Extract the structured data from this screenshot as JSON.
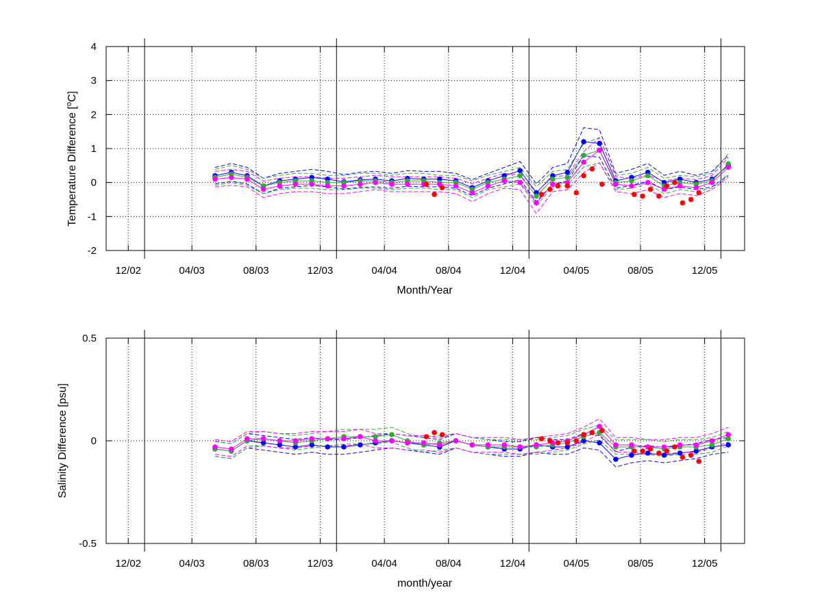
{
  "chart_data": [
    {
      "type": "scatter",
      "title": "",
      "xlabel": "Month/Year",
      "ylabel": "Temperature Difference [°C]",
      "ylabel_parts": [
        "Temperature Difference [",
        "o",
        "C]"
      ],
      "xlim": [
        "2002-10-20",
        "2006-02-15"
      ],
      "ylim": [
        -2,
        4
      ],
      "yticks": [
        -2,
        -1,
        0,
        1,
        2,
        3,
        4
      ],
      "ytick_labels": [
        "-2",
        "-1",
        "0",
        "1",
        "2",
        "3",
        "4"
      ],
      "xticks": [
        "2002-12-01",
        "2003-04-01",
        "2003-08-01",
        "2003-12-01",
        "2004-04-01",
        "2004-08-01",
        "2004-12-01",
        "2005-04-01",
        "2005-08-01",
        "2005-12-01"
      ],
      "xtick_labels": [
        "12/02",
        "04/03",
        "08/03",
        "12/03",
        "04/04",
        "08/04",
        "12/04",
        "04/05",
        "08/05",
        "12/05"
      ],
      "year_lines": [
        "2003-01-01",
        "2004-01-01",
        "2005-01-01",
        "2006-01-01"
      ],
      "grid": true,
      "series": [
        {
          "color": "#0000ff",
          "style": "asterisk",
          "x": [
            "2003-05-15",
            "2003-06-15",
            "2003-07-15",
            "2003-08-15",
            "2003-09-15",
            "2003-10-15",
            "2003-11-15",
            "2003-12-15",
            "2004-01-15",
            "2004-02-15",
            "2004-03-15",
            "2004-04-15",
            "2004-05-15",
            "2004-06-15",
            "2004-07-15",
            "2004-08-15",
            "2004-09-15",
            "2004-10-15",
            "2004-11-15",
            "2004-12-15",
            "2005-01-15",
            "2005-02-15",
            "2005-03-15",
            "2005-04-15",
            "2005-05-15",
            "2005-06-15",
            "2005-07-15",
            "2005-08-15",
            "2005-09-15",
            "2005-10-15",
            "2005-11-15",
            "2005-12-15",
            "2006-01-15"
          ],
          "y": [
            0.2,
            0.3,
            0.2,
            -0.1,
            0.05,
            0.1,
            0.15,
            0.1,
            0.02,
            0.08,
            0.1,
            0.05,
            0.12,
            0.1,
            0.1,
            0.05,
            -0.15,
            0.05,
            0.2,
            0.35,
            -0.3,
            0.2,
            0.3,
            1.2,
            1.15,
            0.05,
            0.15,
            0.3,
            0.0,
            0.1,
            0.0,
            0.1,
            0.5
          ]
        },
        {
          "color": "#33aa33",
          "style": "asterisk",
          "x": [
            "2003-05-15",
            "2003-06-15",
            "2003-07-15",
            "2003-08-15",
            "2003-09-15",
            "2003-10-15",
            "2003-11-15",
            "2003-12-15",
            "2004-01-15",
            "2004-02-15",
            "2004-03-15",
            "2004-04-15",
            "2004-05-15",
            "2004-06-15",
            "2004-07-15",
            "2004-08-15",
            "2004-09-15",
            "2004-10-15",
            "2004-11-15",
            "2004-12-15",
            "2005-01-15",
            "2005-02-15",
            "2005-03-15",
            "2005-04-15",
            "2005-05-15",
            "2005-06-15",
            "2005-07-15",
            "2005-08-15",
            "2005-09-15",
            "2005-10-15",
            "2005-11-15",
            "2005-12-15",
            "2006-01-15"
          ],
          "y": [
            0.15,
            0.25,
            0.15,
            -0.1,
            0.0,
            0.05,
            0.05,
            0.0,
            0.0,
            0.05,
            0.05,
            0.0,
            0.05,
            0.05,
            0.0,
            0.0,
            -0.2,
            0.0,
            0.1,
            0.2,
            -0.4,
            0.1,
            0.15,
            0.8,
            0.95,
            0.0,
            0.05,
            0.2,
            -0.1,
            0.0,
            -0.05,
            0.05,
            0.55
          ]
        },
        {
          "color": "#ff00ff",
          "style": "asterisk",
          "x": [
            "2003-05-15",
            "2003-06-15",
            "2003-07-15",
            "2003-08-15",
            "2003-09-15",
            "2003-10-15",
            "2003-11-15",
            "2003-12-15",
            "2004-01-15",
            "2004-02-15",
            "2004-03-15",
            "2004-04-15",
            "2004-05-15",
            "2004-06-15",
            "2004-07-15",
            "2004-08-15",
            "2004-09-15",
            "2004-10-15",
            "2004-11-15",
            "2004-12-15",
            "2005-01-15",
            "2005-02-15",
            "2005-03-15",
            "2005-04-15",
            "2005-05-15",
            "2005-06-15",
            "2005-07-15",
            "2005-08-15",
            "2005-09-15",
            "2005-10-15",
            "2005-11-15",
            "2005-12-15",
            "2006-01-15"
          ],
          "y": [
            0.1,
            0.15,
            0.1,
            -0.2,
            -0.1,
            -0.05,
            -0.05,
            -0.1,
            -0.1,
            -0.05,
            0.0,
            -0.05,
            -0.05,
            -0.05,
            -0.05,
            -0.1,
            -0.3,
            -0.1,
            0.05,
            0.0,
            -0.6,
            -0.05,
            0.0,
            0.6,
            0.95,
            -0.05,
            -0.1,
            0.0,
            -0.2,
            -0.1,
            -0.15,
            0.0,
            0.45
          ]
        },
        {
          "color": "#ff0000",
          "style": "asterisk",
          "x": [
            "2004-06-20",
            "2004-07-05",
            "2004-07-20",
            "2005-01-25",
            "2005-02-10",
            "2005-02-25",
            "2005-03-15",
            "2005-04-01",
            "2005-04-15",
            "2005-05-01",
            "2005-05-20",
            "2005-07-20",
            "2005-08-05",
            "2005-08-20",
            "2005-09-05",
            "2005-09-20",
            "2005-10-05",
            "2005-10-20",
            "2005-11-05",
            "2005-11-20"
          ],
          "y": [
            -0.05,
            -0.35,
            -0.15,
            -0.35,
            -0.2,
            -0.1,
            -0.1,
            -0.3,
            0.2,
            0.4,
            -0.05,
            -0.35,
            -0.4,
            -0.2,
            -0.4,
            -0.1,
            0.0,
            -0.6,
            -0.5,
            -0.3
          ]
        }
      ]
    },
    {
      "type": "scatter",
      "title": "",
      "xlabel": "month/year",
      "ylabel": "Salinity Difference [psu]",
      "xlim": [
        "2002-10-20",
        "2006-02-15"
      ],
      "ylim": [
        -0.5,
        0.5
      ],
      "yticks": [
        -0.5,
        0,
        0.5
      ],
      "ytick_labels": [
        "-0.5",
        "0",
        "0.5"
      ],
      "xticks": [
        "2002-12-01",
        "2003-04-01",
        "2003-08-01",
        "2003-12-01",
        "2004-04-01",
        "2004-08-01",
        "2004-12-01",
        "2005-04-01",
        "2005-08-01",
        "2005-12-01"
      ],
      "xtick_labels": [
        "12/02",
        "04/03",
        "08/03",
        "12/03",
        "04/04",
        "08/04",
        "12/04",
        "04/05",
        "08/05",
        "12/05"
      ],
      "year_lines": [
        "2003-01-01",
        "2004-01-01",
        "2005-01-01",
        "2006-01-01"
      ],
      "grid": true,
      "series": [
        {
          "color": "#0000ff",
          "style": "asterisk",
          "x": [
            "2003-05-15",
            "2003-06-15",
            "2003-07-15",
            "2003-08-15",
            "2003-09-15",
            "2003-10-15",
            "2003-11-15",
            "2003-12-15",
            "2004-01-15",
            "2004-02-15",
            "2004-03-15",
            "2004-04-15",
            "2004-05-15",
            "2004-06-15",
            "2004-07-15",
            "2004-08-15",
            "2004-09-15",
            "2004-10-15",
            "2004-11-15",
            "2004-12-15",
            "2005-01-15",
            "2005-02-15",
            "2005-03-15",
            "2005-04-15",
            "2005-05-15",
            "2005-06-15",
            "2005-07-15",
            "2005-08-15",
            "2005-09-15",
            "2005-10-15",
            "2005-11-15",
            "2005-12-15",
            "2006-01-15"
          ],
          "y": [
            -0.04,
            -0.05,
            0.0,
            -0.01,
            -0.02,
            -0.03,
            -0.02,
            -0.03,
            -0.03,
            -0.02,
            -0.01,
            0.0,
            -0.01,
            -0.02,
            -0.03,
            0.0,
            -0.02,
            -0.03,
            -0.04,
            -0.04,
            -0.02,
            -0.03,
            -0.03,
            0.0,
            -0.01,
            -0.09,
            -0.07,
            -0.06,
            -0.07,
            -0.06,
            -0.05,
            -0.03,
            -0.02
          ]
        },
        {
          "color": "#33aa33",
          "style": "asterisk",
          "x": [
            "2003-05-15",
            "2003-06-15",
            "2003-07-15",
            "2003-08-15",
            "2003-09-15",
            "2003-10-15",
            "2003-11-15",
            "2003-12-15",
            "2004-01-15",
            "2004-02-15",
            "2004-03-15",
            "2004-04-15",
            "2004-05-15",
            "2004-06-15",
            "2004-07-15",
            "2004-08-15",
            "2004-09-15",
            "2004-10-15",
            "2004-11-15",
            "2004-12-15",
            "2005-01-15",
            "2005-02-15",
            "2005-03-15",
            "2005-04-15",
            "2005-05-15",
            "2005-06-15",
            "2005-07-15",
            "2005-08-15",
            "2005-09-15",
            "2005-10-15",
            "2005-11-15",
            "2005-12-15",
            "2006-01-15"
          ],
          "y": [
            -0.04,
            -0.05,
            0.0,
            0.01,
            0.0,
            -0.01,
            0.0,
            0.01,
            0.02,
            0.02,
            0.02,
            0.03,
            0.0,
            -0.02,
            -0.01,
            0.0,
            -0.02,
            -0.03,
            -0.03,
            -0.03,
            -0.03,
            -0.02,
            -0.01,
            0.02,
            0.04,
            -0.03,
            -0.03,
            -0.03,
            -0.04,
            -0.03,
            -0.03,
            -0.02,
            0.01
          ]
        },
        {
          "color": "#ff00ff",
          "style": "asterisk",
          "x": [
            "2003-05-15",
            "2003-06-15",
            "2003-07-15",
            "2003-08-15",
            "2003-09-15",
            "2003-10-15",
            "2003-11-15",
            "2003-12-15",
            "2004-01-15",
            "2004-02-15",
            "2004-03-15",
            "2004-04-15",
            "2004-05-15",
            "2004-06-15",
            "2004-07-15",
            "2004-08-15",
            "2004-09-15",
            "2004-10-15",
            "2004-11-15",
            "2004-12-15",
            "2005-01-15",
            "2005-02-15",
            "2005-03-15",
            "2005-04-15",
            "2005-05-15",
            "2005-06-15",
            "2005-07-15",
            "2005-08-15",
            "2005-09-15",
            "2005-10-15",
            "2005-11-15",
            "2005-12-15",
            "2006-01-15"
          ],
          "y": [
            -0.03,
            -0.04,
            0.01,
            0.01,
            0.0,
            0.0,
            0.01,
            0.01,
            0.01,
            0.02,
            0.0,
            0.0,
            -0.01,
            -0.01,
            -0.02,
            0.0,
            -0.02,
            -0.02,
            -0.02,
            -0.03,
            -0.02,
            -0.01,
            0.0,
            0.03,
            0.07,
            -0.02,
            -0.02,
            -0.03,
            -0.03,
            -0.02,
            -0.02,
            0.0,
            0.03
          ]
        },
        {
          "color": "#ff0000",
          "style": "asterisk",
          "x": [
            "2004-06-20",
            "2004-07-05",
            "2004-07-20",
            "2005-01-25",
            "2005-02-10",
            "2005-02-25",
            "2005-03-15",
            "2005-04-01",
            "2005-04-15",
            "2005-05-01",
            "2005-05-20",
            "2005-07-20",
            "2005-08-05",
            "2005-08-20",
            "2005-09-05",
            "2005-09-20",
            "2005-10-05",
            "2005-10-20",
            "2005-11-05",
            "2005-11-20"
          ],
          "y": [
            0.02,
            0.04,
            0.03,
            0.01,
            0.0,
            -0.01,
            -0.01,
            0.0,
            0.03,
            0.04,
            0.05,
            -0.05,
            -0.05,
            -0.04,
            -0.06,
            -0.05,
            -0.03,
            -0.08,
            -0.07,
            -0.1
          ]
        }
      ]
    }
  ]
}
